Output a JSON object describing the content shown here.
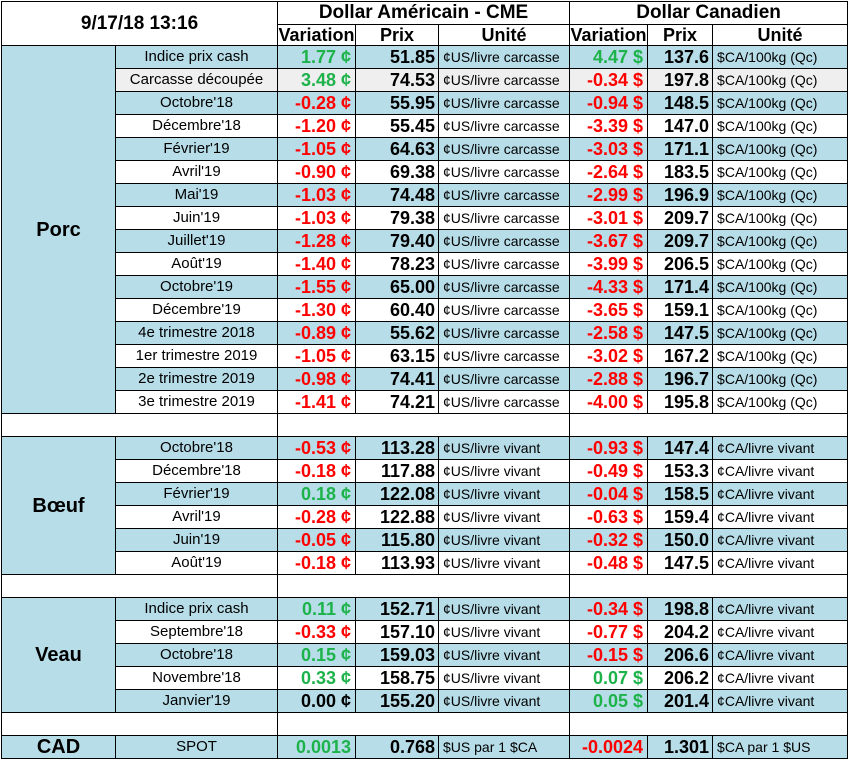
{
  "header": {
    "timestamp": "9/17/18 13:16",
    "usd_title": "Dollar Américain - CME",
    "cad_title": "Dollar Canadien",
    "col_variation": "Variation",
    "col_prix": "Prix",
    "col_unite": "Unité"
  },
  "colors": {
    "row_shade": "#b7dde8",
    "negative": "#ff0000",
    "positive": "#1db34a"
  },
  "groups": [
    {
      "name": "Porc",
      "rows": [
        {
          "label": "Indice prix cash",
          "usd_var": "1.77 ¢",
          "usd_var_color": "green",
          "usd_prix": "51.85",
          "usd_unit": "¢US/livre carcasse",
          "cad_var": "4.47 $",
          "cad_var_color": "green",
          "cad_prix": "137.6",
          "cad_unit": "$CA/100kg (Qc)",
          "shade": "shade"
        },
        {
          "label": "Carcasse découpée",
          "usd_var": "3.48 ¢",
          "usd_var_color": "green",
          "usd_prix": "74.53",
          "usd_unit": "¢US/livre carcasse",
          "cad_var": "-0.34 $",
          "cad_var_color": "red",
          "cad_prix": "197.8",
          "cad_unit": "$CA/100kg (Qc)",
          "shade": "grey"
        },
        {
          "label": "Octobre'18",
          "usd_var": "-0.28 ¢",
          "usd_var_color": "red",
          "usd_prix": "55.95",
          "usd_unit": "¢US/livre carcasse",
          "cad_var": "-0.94 $",
          "cad_var_color": "red",
          "cad_prix": "148.5",
          "cad_unit": "$CA/100kg (Qc)",
          "shade": "shade"
        },
        {
          "label": "Décembre'18",
          "usd_var": "-1.20 ¢",
          "usd_var_color": "red",
          "usd_prix": "55.45",
          "usd_unit": "¢US/livre carcasse",
          "cad_var": "-3.39 $",
          "cad_var_color": "red",
          "cad_prix": "147.0",
          "cad_unit": "$CA/100kg (Qc)",
          "shade": "white"
        },
        {
          "label": "Février'19",
          "usd_var": "-1.05 ¢",
          "usd_var_color": "red",
          "usd_prix": "64.63",
          "usd_unit": "¢US/livre carcasse",
          "cad_var": "-3.03 $",
          "cad_var_color": "red",
          "cad_prix": "171.1",
          "cad_unit": "$CA/100kg (Qc)",
          "shade": "shade"
        },
        {
          "label": "Avril'19",
          "usd_var": "-0.90 ¢",
          "usd_var_color": "red",
          "usd_prix": "69.38",
          "usd_unit": "¢US/livre carcasse",
          "cad_var": "-2.64 $",
          "cad_var_color": "red",
          "cad_prix": "183.5",
          "cad_unit": "$CA/100kg (Qc)",
          "shade": "white"
        },
        {
          "label": "Mai'19",
          "usd_var": "-1.03 ¢",
          "usd_var_color": "red",
          "usd_prix": "74.48",
          "usd_unit": "¢US/livre carcasse",
          "cad_var": "-2.99 $",
          "cad_var_color": "red",
          "cad_prix": "196.9",
          "cad_unit": "$CA/100kg (Qc)",
          "shade": "shade"
        },
        {
          "label": "Juin'19",
          "usd_var": "-1.03 ¢",
          "usd_var_color": "red",
          "usd_prix": "79.38",
          "usd_unit": "¢US/livre carcasse",
          "cad_var": "-3.01 $",
          "cad_var_color": "red",
          "cad_prix": "209.7",
          "cad_unit": "$CA/100kg (Qc)",
          "shade": "white"
        },
        {
          "label": "Juillet'19",
          "usd_var": "-1.28 ¢",
          "usd_var_color": "red",
          "usd_prix": "79.40",
          "usd_unit": "¢US/livre carcasse",
          "cad_var": "-3.67 $",
          "cad_var_color": "red",
          "cad_prix": "209.7",
          "cad_unit": "$CA/100kg (Qc)",
          "shade": "shade"
        },
        {
          "label": "Août'19",
          "usd_var": "-1.40 ¢",
          "usd_var_color": "red",
          "usd_prix": "78.23",
          "usd_unit": "¢US/livre carcasse",
          "cad_var": "-3.99 $",
          "cad_var_color": "red",
          "cad_prix": "206.5",
          "cad_unit": "$CA/100kg (Qc)",
          "shade": "white"
        },
        {
          "label": "Octobre'19",
          "usd_var": "-1.55 ¢",
          "usd_var_color": "red",
          "usd_prix": "65.00",
          "usd_unit": "¢US/livre carcasse",
          "cad_var": "-4.33 $",
          "cad_var_color": "red",
          "cad_prix": "171.4",
          "cad_unit": "$CA/100kg (Qc)",
          "shade": "shade"
        },
        {
          "label": "Décembre'19",
          "usd_var": "-1.30 ¢",
          "usd_var_color": "red",
          "usd_prix": "60.40",
          "usd_unit": "¢US/livre carcasse",
          "cad_var": "-3.65 $",
          "cad_var_color": "red",
          "cad_prix": "159.1",
          "cad_unit": "$CA/100kg (Qc)",
          "shade": "white"
        },
        {
          "label": "4e trimestre 2018",
          "usd_var": "-0.89 ¢",
          "usd_var_color": "red",
          "usd_prix": "55.62",
          "usd_unit": "¢US/livre carcasse",
          "cad_var": "-2.58 $",
          "cad_var_color": "red",
          "cad_prix": "147.5",
          "cad_unit": "$CA/100kg (Qc)",
          "shade": "shade"
        },
        {
          "label": "1er trimestre 2019",
          "usd_var": "-1.05 ¢",
          "usd_var_color": "red",
          "usd_prix": "63.15",
          "usd_unit": "¢US/livre carcasse",
          "cad_var": "-3.02 $",
          "cad_var_color": "red",
          "cad_prix": "167.2",
          "cad_unit": "$CA/100kg (Qc)",
          "shade": "white"
        },
        {
          "label": "2e trimestre 2019",
          "usd_var": "-0.98 ¢",
          "usd_var_color": "red",
          "usd_prix": "74.41",
          "usd_unit": "¢US/livre carcasse",
          "cad_var": "-2.88 $",
          "cad_var_color": "red",
          "cad_prix": "196.7",
          "cad_unit": "$CA/100kg (Qc)",
          "shade": "shade"
        },
        {
          "label": "3e trimestre 2019",
          "usd_var": "-1.41 ¢",
          "usd_var_color": "red",
          "usd_prix": "74.21",
          "usd_unit": "¢US/livre carcasse",
          "cad_var": "-4.00 $",
          "cad_var_color": "red",
          "cad_prix": "195.8",
          "cad_unit": "$CA/100kg (Qc)",
          "shade": "white"
        }
      ]
    },
    {
      "name": "Bœuf",
      "rows": [
        {
          "label": "Octobre'18",
          "usd_var": "-0.53 ¢",
          "usd_var_color": "red",
          "usd_prix": "113.28",
          "usd_unit": "¢US/livre vivant",
          "cad_var": "-0.93 $",
          "cad_var_color": "red",
          "cad_prix": "147.4",
          "cad_unit": "¢CA/livre vivant",
          "shade": "shade"
        },
        {
          "label": "Décembre'18",
          "usd_var": "-0.18 ¢",
          "usd_var_color": "red",
          "usd_prix": "117.88",
          "usd_unit": "¢US/livre vivant",
          "cad_var": "-0.49 $",
          "cad_var_color": "red",
          "cad_prix": "153.3",
          "cad_unit": "¢CA/livre vivant",
          "shade": "white"
        },
        {
          "label": "Février'19",
          "usd_var": "0.18 ¢",
          "usd_var_color": "green",
          "usd_prix": "122.08",
          "usd_unit": "¢US/livre vivant",
          "cad_var": "-0.04 $",
          "cad_var_color": "red",
          "cad_prix": "158.5",
          "cad_unit": "¢CA/livre vivant",
          "shade": "shade"
        },
        {
          "label": "Avril'19",
          "usd_var": "-0.28 ¢",
          "usd_var_color": "red",
          "usd_prix": "122.88",
          "usd_unit": "¢US/livre vivant",
          "cad_var": "-0.63 $",
          "cad_var_color": "red",
          "cad_prix": "159.4",
          "cad_unit": "¢CA/livre vivant",
          "shade": "white"
        },
        {
          "label": "Juin'19",
          "usd_var": "-0.05 ¢",
          "usd_var_color": "red",
          "usd_prix": "115.80",
          "usd_unit": "¢US/livre vivant",
          "cad_var": "-0.32 $",
          "cad_var_color": "red",
          "cad_prix": "150.0",
          "cad_unit": "¢CA/livre vivant",
          "shade": "shade"
        },
        {
          "label": "Août'19",
          "usd_var": "-0.18 ¢",
          "usd_var_color": "red",
          "usd_prix": "113.93",
          "usd_unit": "¢US/livre vivant",
          "cad_var": "-0.48 $",
          "cad_var_color": "red",
          "cad_prix": "147.5",
          "cad_unit": "¢CA/livre vivant",
          "shade": "white"
        }
      ]
    },
    {
      "name": "Veau",
      "rows": [
        {
          "label": "Indice prix cash",
          "usd_var": "0.11 ¢",
          "usd_var_color": "green",
          "usd_prix": "152.71",
          "usd_unit": "¢US/livre vivant",
          "cad_var": "-0.34 $",
          "cad_var_color": "red",
          "cad_prix": "198.8",
          "cad_unit": "¢CA/livre vivant",
          "shade": "shade"
        },
        {
          "label": "Septembre'18",
          "usd_var": "-0.33 ¢",
          "usd_var_color": "red",
          "usd_prix": "157.10",
          "usd_unit": "¢US/livre vivant",
          "cad_var": "-0.77 $",
          "cad_var_color": "red",
          "cad_prix": "204.2",
          "cad_unit": "¢CA/livre vivant",
          "shade": "white"
        },
        {
          "label": "Octobre'18",
          "usd_var": "0.15 ¢",
          "usd_var_color": "green",
          "usd_prix": "159.03",
          "usd_unit": "¢US/livre vivant",
          "cad_var": "-0.15 $",
          "cad_var_color": "red",
          "cad_prix": "206.6",
          "cad_unit": "¢CA/livre vivant",
          "shade": "shade"
        },
        {
          "label": "Novembre'18",
          "usd_var": "0.33 ¢",
          "usd_var_color": "green",
          "usd_prix": "158.75",
          "usd_unit": "¢US/livre vivant",
          "cad_var": "0.07 $",
          "cad_var_color": "green",
          "cad_prix": "206.2",
          "cad_unit": "¢CA/livre vivant",
          "shade": "white"
        },
        {
          "label": "Janvier'19",
          "usd_var": "0.00 ¢",
          "usd_var_color": "black",
          "usd_prix": "155.20",
          "usd_unit": "¢US/livre vivant",
          "cad_var": "0.05 $",
          "cad_var_color": "green",
          "cad_prix": "201.4",
          "cad_unit": "¢CA/livre vivant",
          "shade": "shade"
        }
      ]
    },
    {
      "name": "CAD",
      "rows": [
        {
          "label": "SPOT",
          "usd_var": "0.0013",
          "usd_var_color": "green",
          "usd_prix": "0.768",
          "usd_unit": "$US par 1 $CA",
          "cad_var": "-0.0024",
          "cad_var_color": "red",
          "cad_prix": "1.301",
          "cad_unit": "$CA par 1 $US",
          "shade": "shade"
        }
      ]
    }
  ]
}
